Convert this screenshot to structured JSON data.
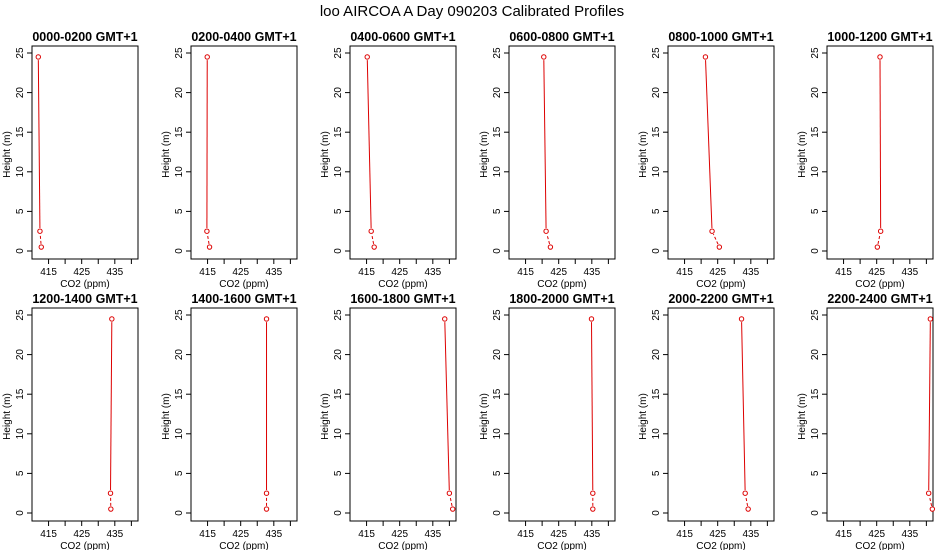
{
  "figure": {
    "title": "loo AIRCOA A  Day 090203  Calibrated Profiles"
  },
  "chart_data": [
    {
      "type": "line",
      "title": "0000-0200 GMT+1",
      "xlabel": "CO2 (ppm)",
      "ylabel": "Height (m)",
      "xlim": [
        410,
        442
      ],
      "ylim": [
        0,
        25
      ],
      "x_ticks": [
        "415",
        "425",
        "435"
      ],
      "y_ticks": [
        "0",
        "5",
        "10",
        "15",
        "20",
        "25"
      ],
      "heights": [
        0.5,
        2.5,
        24.5
      ],
      "values": [
        412.8,
        412.4,
        411.9
      ]
    },
    {
      "type": "line",
      "title": "0200-0400 GMT+1",
      "xlabel": "CO2 (ppm)",
      "ylabel": "Height (m)",
      "xlim": [
        410,
        442
      ],
      "ylim": [
        0,
        25
      ],
      "x_ticks": [
        "415",
        "425",
        "435"
      ],
      "y_ticks": [
        "0",
        "5",
        "10",
        "15",
        "20",
        "25"
      ],
      "heights": [
        0.5,
        2.5,
        24.5
      ],
      "values": [
        415.6,
        414.8,
        414.9
      ]
    },
    {
      "type": "line",
      "title": "0400-0600 GMT+1",
      "xlabel": "CO2 (ppm)",
      "ylabel": "Height (m)",
      "xlim": [
        410,
        442
      ],
      "ylim": [
        0,
        25
      ],
      "x_ticks": [
        "415",
        "425",
        "435"
      ],
      "y_ticks": [
        "0",
        "5",
        "10",
        "15",
        "20",
        "25"
      ],
      "heights": [
        0.5,
        2.5,
        24.5
      ],
      "values": [
        417.3,
        416.4,
        415.2
      ]
    },
    {
      "type": "line",
      "title": "0600-0800 GMT+1",
      "xlabel": "CO2 (ppm)",
      "ylabel": "Height (m)",
      "xlim": [
        410,
        442
      ],
      "ylim": [
        0,
        25
      ],
      "x_ticks": [
        "415",
        "425",
        "435"
      ],
      "y_ticks": [
        "0",
        "5",
        "10",
        "15",
        "20",
        "25"
      ],
      "heights": [
        0.5,
        2.5,
        24.5
      ],
      "values": [
        422.5,
        421.2,
        420.5
      ]
    },
    {
      "type": "line",
      "title": "0800-1000 GMT+1",
      "xlabel": "CO2 (ppm)",
      "ylabel": "Height (m)",
      "xlim": [
        410,
        442
      ],
      "ylim": [
        0,
        25
      ],
      "x_ticks": [
        "415",
        "425",
        "435"
      ],
      "y_ticks": [
        "0",
        "5",
        "10",
        "15",
        "20",
        "25"
      ],
      "heights": [
        0.5,
        2.5,
        24.5
      ],
      "values": [
        425.5,
        423.3,
        421.3
      ]
    },
    {
      "type": "line",
      "title": "1000-1200 GMT+1",
      "xlabel": "CO2 (ppm)",
      "ylabel": "Height (m)",
      "xlim": [
        410,
        442
      ],
      "ylim": [
        0,
        25
      ],
      "x_ticks": [
        "415",
        "425",
        "435"
      ],
      "y_ticks": [
        "0",
        "5",
        "10",
        "15",
        "20",
        "25"
      ],
      "heights": [
        0.5,
        2.5,
        24.5
      ],
      "values": [
        425.2,
        426.2,
        426.0
      ]
    },
    {
      "type": "line",
      "title": "1200-1400 GMT+1",
      "xlabel": "CO2 (ppm)",
      "ylabel": "Height (m)",
      "xlim": [
        410,
        442
      ],
      "ylim": [
        0,
        25
      ],
      "x_ticks": [
        "415",
        "425",
        "435"
      ],
      "y_ticks": [
        "0",
        "5",
        "10",
        "15",
        "20",
        "25"
      ],
      "heights": [
        0.5,
        2.5,
        24.5
      ],
      "values": [
        433.8,
        433.7,
        434.1
      ]
    },
    {
      "type": "line",
      "title": "1400-1600 GMT+1",
      "xlabel": "CO2 (ppm)",
      "ylabel": "Height (m)",
      "xlim": [
        410,
        442
      ],
      "ylim": [
        0,
        25
      ],
      "x_ticks": [
        "415",
        "425",
        "435"
      ],
      "y_ticks": [
        "0",
        "5",
        "10",
        "15",
        "20",
        "25"
      ],
      "heights": [
        0.5,
        2.5,
        24.5
      ],
      "values": [
        432.8,
        432.8,
        432.8
      ]
    },
    {
      "type": "line",
      "title": "1600-1800 GMT+1",
      "xlabel": "CO2 (ppm)",
      "ylabel": "Height (m)",
      "xlim": [
        410,
        442
      ],
      "ylim": [
        0,
        25
      ],
      "x_ticks": [
        "415",
        "425",
        "435"
      ],
      "y_ticks": [
        "0",
        "5",
        "10",
        "15",
        "20",
        "25"
      ],
      "heights": [
        0.5,
        2.5,
        24.5
      ],
      "values": [
        441.0,
        440.0,
        438.6
      ]
    },
    {
      "type": "line",
      "title": "1800-2000 GMT+1",
      "xlabel": "CO2 (ppm)",
      "ylabel": "Height (m)",
      "xlim": [
        410,
        442
      ],
      "ylim": [
        0,
        25
      ],
      "x_ticks": [
        "415",
        "425",
        "435"
      ],
      "y_ticks": [
        "0",
        "5",
        "10",
        "15",
        "20",
        "25"
      ],
      "heights": [
        0.5,
        2.5,
        24.5
      ],
      "values": [
        435.3,
        435.3,
        434.9
      ]
    },
    {
      "type": "line",
      "title": "2000-2200 GMT+1",
      "xlabel": "CO2 (ppm)",
      "ylabel": "Height (m)",
      "xlim": [
        410,
        442
      ],
      "ylim": [
        0,
        25
      ],
      "x_ticks": [
        "415",
        "425",
        "435"
      ],
      "y_ticks": [
        "0",
        "5",
        "10",
        "15",
        "20",
        "25"
      ],
      "heights": [
        0.5,
        2.5,
        24.5
      ],
      "values": [
        434.2,
        433.3,
        432.2
      ]
    },
    {
      "type": "line",
      "title": "2200-2400 GMT+1",
      "xlabel": "CO2 (ppm)",
      "ylabel": "Height (m)",
      "xlim": [
        410,
        442
      ],
      "ylim": [
        0,
        25
      ],
      "x_ticks": [
        "415",
        "425",
        "435"
      ],
      "y_ticks": [
        "0",
        "5",
        "10",
        "15",
        "20",
        "25"
      ],
      "heights": [
        0.5,
        2.5,
        24.5
      ],
      "values": [
        441.8,
        440.7,
        441.2
      ]
    }
  ],
  "style": {
    "line_color": "#dd0000",
    "axis_color": "#000000"
  }
}
